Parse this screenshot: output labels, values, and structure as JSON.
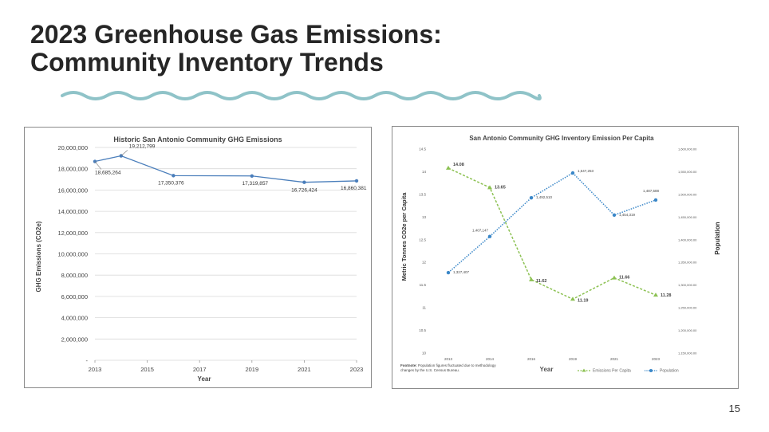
{
  "slide": {
    "title_line1": "2023 Greenhouse Gas Emissions:",
    "title_line2": "Community Inventory Trends",
    "page_number": "15",
    "accent_color": "#8fc3c8"
  },
  "chart_data": [
    {
      "type": "line",
      "title": "Historic San Antonio Community GHG Emissions",
      "xlabel": "Year",
      "ylabel": "GHG Emissions (CO2e)",
      "x": [
        2013,
        2014,
        2016,
        2019,
        2021,
        2023
      ],
      "values": [
        18685264,
        19212799,
        17350376,
        17319857,
        16726424,
        16860381
      ],
      "data_labels": [
        "18,685,264",
        "19,212,799",
        "17,350,376",
        "17,319,857",
        "16,726,424",
        "16,860,381"
      ],
      "xticks": [
        "2013",
        "2015",
        "2017",
        "2019",
        "2021",
        "2023"
      ],
      "yticks": [
        "20,000,000",
        "18,000,000",
        "16,000,000",
        "14,000,000",
        "12,000,000",
        "10,000,000",
        "8,000,000",
        "6,000,000",
        "4,000,000",
        "2,000,000",
        "-"
      ],
      "ylim": [
        0,
        20000000
      ],
      "xlim": [
        2013,
        2023
      ],
      "series_color": "#4a7ebb",
      "grid": true
    },
    {
      "type": "line",
      "title": "San Antonio Community GHG Inventory Emission Per Capita",
      "xlabel": "Year",
      "ylabel_left": "Metric Tonnes CO2e per Capita",
      "ylabel_right": "Population",
      "categories": [
        "2013",
        "2014",
        "2016",
        "2019",
        "2021",
        "2023"
      ],
      "series": [
        {
          "name": "Emissions Per Capita",
          "axis": "left",
          "values": [
            14.08,
            13.65,
            11.62,
            11.19,
            11.66,
            11.28
          ],
          "data_labels": [
            "14.08",
            "13.65",
            "11.62",
            "11.19",
            "11.66",
            "11.28"
          ],
          "color": "#8cc152",
          "marker": "triangle"
        },
        {
          "name": "Population",
          "axis": "right",
          "values": [
            1327407,
            1407147,
            1492510,
            1547253,
            1454319,
            1487588
          ],
          "data_labels": [
            "1,327,407",
            "1,407,147",
            "1,492,510",
            "1,547,253",
            "1,454,319",
            "1,487,588"
          ],
          "color": "#3a87c8",
          "marker": "circle"
        }
      ],
      "left_ticks": [
        "14.5",
        "14",
        "13.5",
        "13",
        "12.5",
        "12",
        "11.5",
        "11",
        "10.5",
        "10"
      ],
      "left_ylim": [
        10,
        14.5
      ],
      "right_ticks": [
        "1,600,000.00",
        "1,550,000.00",
        "1,500,000.00",
        "1,450,000.00",
        "1,400,000.00",
        "1,350,000.00",
        "1,300,000.00",
        "1,250,000.00",
        "1,200,000.00",
        "1,150,000.00"
      ],
      "right_ylim": [
        1150000,
        1600000
      ],
      "footnote_bold": "Footnote:",
      "footnote_text": " Population figures fluctuated due to methodology",
      "footnote_line2": "changes by the U.S. Census Bureau.",
      "legend": [
        "Emissions Per Capita",
        "Population"
      ]
    }
  ]
}
